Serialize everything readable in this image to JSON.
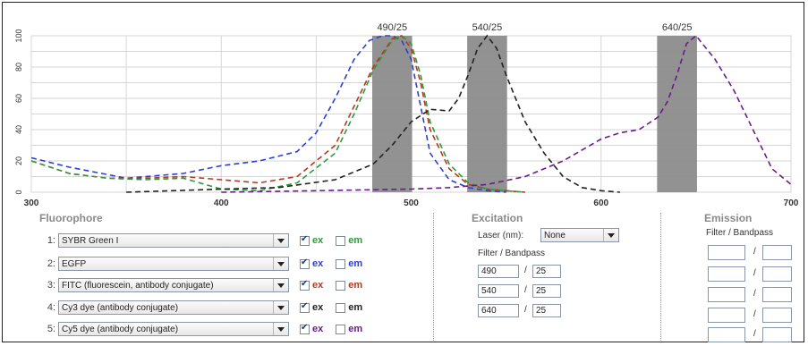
{
  "chart_data": {
    "type": "line",
    "x_range": [
      300,
      700
    ],
    "y_range": [
      0,
      100
    ],
    "x_ticks": [
      "300",
      "400",
      "500",
      "600",
      "700"
    ],
    "y_ticks": [
      "0",
      "20",
      "40",
      "60",
      "80",
      "100"
    ],
    "filter_bands": [
      {
        "label": "490/25",
        "center": 490,
        "width": 25
      },
      {
        "label": "540/25",
        "center": 540,
        "width": 25
      },
      {
        "label": "640/25",
        "center": 640,
        "width": 25
      }
    ],
    "series": [
      {
        "color": "#2b3fd6",
        "x": [
          300,
          320,
          350,
          380,
          400,
          420,
          440,
          450,
          460,
          470,
          478,
          485,
          490,
          495,
          500,
          505,
          510,
          520,
          530,
          540,
          550
        ],
        "y": [
          22,
          16,
          9,
          12,
          17,
          20,
          26,
          38,
          60,
          85,
          97,
          100,
          100,
          97,
          85,
          55,
          25,
          8,
          3,
          1,
          0
        ]
      },
      {
        "color": "#b8361e",
        "x": [
          300,
          320,
          340,
          360,
          380,
          400,
          420,
          440,
          460,
          470,
          480,
          490,
          495,
          500,
          505,
          510,
          520,
          530,
          540,
          550,
          560
        ],
        "y": [
          20,
          12,
          9,
          9,
          10,
          8,
          6,
          10,
          30,
          55,
          80,
          98,
          100,
          92,
          70,
          40,
          15,
          5,
          2,
          1,
          0
        ]
      },
      {
        "color": "#2e9a3c",
        "x": [
          300,
          320,
          340,
          360,
          380,
          400,
          420,
          440,
          460,
          470,
          480,
          490,
          495,
          500,
          505,
          510,
          520,
          530,
          540,
          550,
          560
        ],
        "y": [
          20,
          12,
          9,
          8,
          9,
          2,
          1,
          6,
          25,
          50,
          78,
          97,
          100,
          95,
          75,
          45,
          18,
          6,
          2,
          1,
          0
        ]
      },
      {
        "color": "#222222",
        "x": [
          350,
          400,
          430,
          460,
          480,
          490,
          500,
          510,
          520,
          525,
          530,
          535,
          540,
          545,
          550,
          560,
          570,
          580,
          590,
          600,
          610
        ],
        "y": [
          0,
          2,
          3,
          8,
          18,
          30,
          45,
          53,
          52,
          60,
          75,
          92,
          100,
          92,
          75,
          45,
          25,
          10,
          3,
          1,
          0
        ]
      },
      {
        "color": "#6a1b8a",
        "x": [
          400,
          450,
          500,
          520,
          540,
          560,
          580,
          600,
          610,
          620,
          630,
          635,
          640,
          645,
          650,
          660,
          670,
          680,
          690,
          700
        ],
        "y": [
          0,
          1,
          2,
          3,
          5,
          10,
          20,
          34,
          38,
          40,
          48,
          58,
          75,
          95,
          100,
          85,
          65,
          40,
          15,
          5
        ]
      }
    ]
  },
  "fluorophore": {
    "title": "Fluorophore",
    "rows": [
      {
        "num": "1:",
        "value": "SYBR Green I",
        "ex_label": "ex",
        "ex_checked": true,
        "ex_color": "#2e9a3c",
        "em_label": "em",
        "em_checked": false,
        "em_color": "#2e9a3c"
      },
      {
        "num": "2:",
        "value": "EGFP",
        "ex_label": "ex",
        "ex_checked": true,
        "ex_color": "#2b3fd6",
        "em_label": "em",
        "em_checked": false,
        "em_color": "#2b3fd6"
      },
      {
        "num": "3:",
        "value": "FITC (fluorescein, antibody conjugate)",
        "ex_label": "ex",
        "ex_checked": true,
        "ex_color": "#b8361e",
        "em_label": "em",
        "em_checked": false,
        "em_color": "#b8361e"
      },
      {
        "num": "4:",
        "value": "Cy3 dye (antibody conjugate)",
        "ex_label": "ex",
        "ex_checked": true,
        "ex_color": "#222222",
        "em_label": "em",
        "em_checked": false,
        "em_color": "#222222"
      },
      {
        "num": "5:",
        "value": "Cy5 dye (antibody conjugate)",
        "ex_label": "ex",
        "ex_checked": true,
        "ex_color": "#6a1b8a",
        "em_label": "em",
        "em_checked": false,
        "em_color": "#6a1b8a"
      }
    ]
  },
  "excitation": {
    "title": "Excitation",
    "laser_label": "Laser (nm):",
    "laser_value": "None",
    "filter_label": "Filter / Bandpass",
    "filters": [
      {
        "filter": "490",
        "bandpass": "25"
      },
      {
        "filter": "540",
        "bandpass": "25"
      },
      {
        "filter": "640",
        "bandpass": "25"
      }
    ]
  },
  "emission": {
    "title": "Emission",
    "filter_label": "Filter / Bandpass",
    "filters": [
      {
        "filter": "",
        "bandpass": ""
      },
      {
        "filter": "",
        "bandpass": ""
      },
      {
        "filter": "",
        "bandpass": ""
      },
      {
        "filter": "",
        "bandpass": ""
      },
      {
        "filter": "",
        "bandpass": ""
      }
    ]
  },
  "slash": "/"
}
